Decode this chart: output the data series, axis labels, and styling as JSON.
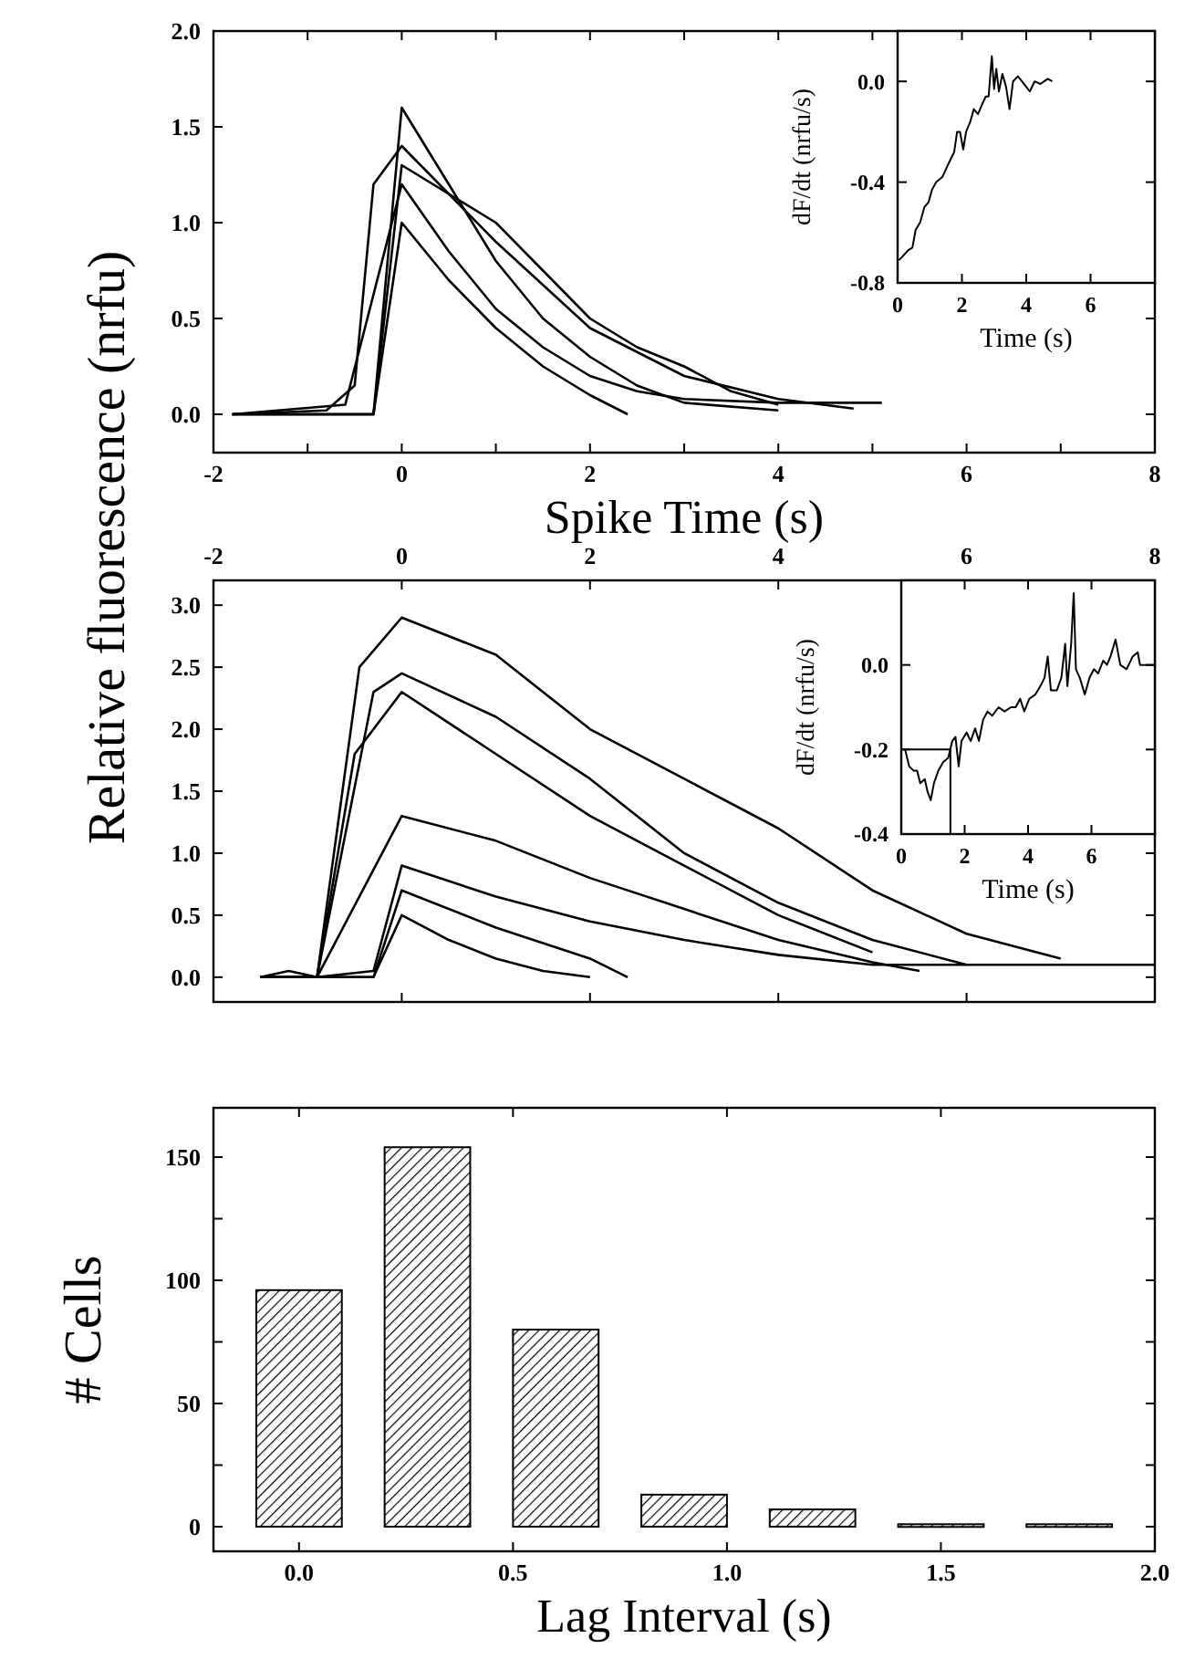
{
  "chart_data": [
    {
      "type": "line",
      "ylabel": "Relative fluorescence (nrfu)",
      "xlabel": "Spike Time (s)",
      "xlim": [
        -2,
        8
      ],
      "ylim": [
        -0.2,
        2.0
      ],
      "xticks": [
        -2,
        {
          "value": -1,
          "label": null
        },
        0,
        {
          "value": 1,
          "label": null
        },
        2,
        {
          "value": 3,
          "label": null
        },
        4,
        {
          "value": 5,
          "label": null
        },
        6,
        {
          "value": 7,
          "label": null
        },
        8
      ],
      "yticks": [
        {
          "value": 0,
          "label": "0.0"
        },
        {
          "value": 0.5,
          "label": "0.5"
        },
        {
          "value": 1,
          "label": "1.0"
        },
        {
          "value": 1.5,
          "label": "1.5"
        },
        {
          "value": 2,
          "label": "2.0"
        }
      ],
      "series": [
        {
          "color": "#000000",
          "x": [
            -1.8,
            -0.3,
            0,
            0.5,
            1,
            1.5,
            2,
            2.5,
            3,
            4
          ],
          "values": [
            0,
            0,
            1.6,
            1.2,
            0.8,
            0.5,
            0.3,
            0.15,
            0.06,
            0.02
          ]
        },
        {
          "color": "#000000",
          "x": [
            -1.8,
            -0.3,
            0,
            0.5,
            1,
            1.5,
            2,
            2.4
          ],
          "values": [
            0,
            0,
            1.0,
            0.7,
            0.45,
            0.25,
            0.1,
            0
          ]
        },
        {
          "color": "#000000",
          "x": [
            -1.8,
            -0.8,
            -0.5,
            -0.3,
            0,
            1,
            2,
            3,
            4,
            4.8
          ],
          "values": [
            0,
            0.02,
            0.15,
            1.2,
            1.4,
            0.9,
            0.45,
            0.2,
            0.08,
            0.03
          ]
        },
        {
          "color": "#000000",
          "x": [
            -1.8,
            -0.6,
            0,
            0.5,
            1,
            1.5,
            2,
            2.5,
            3,
            4,
            5.1
          ],
          "values": [
            0,
            0.05,
            1.2,
            0.85,
            0.55,
            0.35,
            0.2,
            0.12,
            0.08,
            0.06,
            0.06
          ]
        },
        {
          "color": "#000000",
          "x": [
            -1.8,
            -0.3,
            0,
            1,
            1.5,
            2,
            2.5,
            3,
            3.5,
            4
          ],
          "values": [
            0,
            0,
            1.3,
            1.0,
            0.75,
            0.5,
            0.35,
            0.25,
            0.12,
            0.05
          ]
        }
      ]
    },
    {
      "type": "line",
      "xlabel": "Time (s)",
      "ylabel": "dF/dt (nrfu/s)",
      "xlim": [
        0,
        8
      ],
      "ylim": [
        -0.8,
        0.2
      ],
      "xticks": [
        0,
        2,
        4,
        6
      ],
      "yticks": [
        {
          "value": -0.8,
          "label": "-0.8"
        },
        {
          "value": -0.4,
          "label": "-0.4"
        },
        {
          "value": 0,
          "label": "0.0"
        }
      ],
      "series": [
        {
          "color": "#000000",
          "x": [
            0.04,
            0.19,
            0.33,
            0.46,
            0.56,
            0.7,
            0.83,
            0.96,
            1.07,
            1.2,
            1.39,
            1.57,
            1.76,
            1.85,
            1.94,
            2.04,
            2.13,
            2.26,
            2.37,
            2.5,
            2.63,
            2.74,
            2.83,
            2.93,
            3.0,
            3.07,
            3.15,
            3.26,
            3.37,
            3.48,
            3.59,
            3.74,
            3.93,
            4.11,
            4.26,
            4.44,
            4.67,
            4.81
          ],
          "values": [
            -0.71,
            -0.69,
            -0.67,
            -0.66,
            -0.59,
            -0.56,
            -0.5,
            -0.48,
            -0.43,
            -0.4,
            -0.38,
            -0.33,
            -0.28,
            -0.2,
            -0.2,
            -0.27,
            -0.2,
            -0.16,
            -0.11,
            -0.13,
            -0.09,
            -0.06,
            -0.06,
            0.1,
            -0.03,
            0.05,
            -0.04,
            0.03,
            -0.02,
            -0.11,
            0.0,
            0.02,
            -0.01,
            -0.04,
            0.0,
            -0.01,
            0.01,
            0.0
          ]
        }
      ]
    },
    {
      "type": "line",
      "xlim": [
        -2,
        8
      ],
      "ylim": [
        -0.2,
        3.2
      ],
      "xticks": [
        -2,
        0,
        2,
        4,
        6,
        8
      ],
      "yticks": [
        {
          "value": 0,
          "label": "0.0"
        },
        {
          "value": 0.5,
          "label": "0.5"
        },
        {
          "value": 1,
          "label": "1.0"
        },
        {
          "value": 1.5,
          "label": "1.5"
        },
        {
          "value": 2,
          "label": "2.0"
        },
        {
          "value": 2.5,
          "label": "2.5"
        },
        {
          "value": 3,
          "label": "3.0"
        }
      ],
      "series": [
        {
          "color": "#000000",
          "x": [
            -1.5,
            -1.2,
            -0.9,
            -0.45,
            0,
            1,
            2,
            3,
            4,
            5,
            6,
            7
          ],
          "values": [
            0,
            0.05,
            0,
            2.5,
            2.9,
            2.6,
            2.0,
            1.6,
            1.2,
            0.7,
            0.35,
            0.15
          ]
        },
        {
          "color": "#000000",
          "x": [
            -1.5,
            -0.9,
            -0.3,
            0,
            1,
            2,
            3,
            4,
            5,
            6
          ],
          "values": [
            0,
            0,
            2.3,
            2.45,
            2.1,
            1.6,
            1.0,
            0.6,
            0.3,
            0.1
          ]
        },
        {
          "color": "#000000",
          "x": [
            -1.5,
            -0.9,
            -0.5,
            0,
            1,
            2,
            3,
            4,
            5
          ],
          "values": [
            0,
            0,
            1.8,
            2.3,
            1.8,
            1.3,
            0.9,
            0.5,
            0.2
          ]
        },
        {
          "color": "#000000",
          "x": [
            -1.5,
            -0.9,
            0,
            1,
            2,
            3,
            4,
            5,
            5.5
          ],
          "values": [
            0,
            0,
            1.3,
            1.1,
            0.8,
            0.55,
            0.3,
            0.12,
            0.05
          ]
        },
        {
          "color": "#000000",
          "x": [
            -1.5,
            -0.9,
            -0.3,
            0,
            1,
            2,
            3,
            4,
            5,
            6,
            8
          ],
          "values": [
            0,
            0,
            0.05,
            0.9,
            0.65,
            0.45,
            0.3,
            0.18,
            0.1,
            0.1,
            0.1
          ]
        },
        {
          "color": "#000000",
          "x": [
            -1.5,
            -0.3,
            0,
            1,
            2,
            2.4
          ],
          "values": [
            0,
            0,
            0.7,
            0.4,
            0.15,
            0
          ]
        },
        {
          "color": "#000000",
          "x": [
            -1.5,
            -0.3,
            0,
            0.5,
            1,
            1.5,
            2
          ],
          "values": [
            0,
            0,
            0.5,
            0.3,
            0.15,
            0.05,
            0
          ]
        }
      ]
    },
    {
      "type": "line",
      "xlabel": "Time (s)",
      "ylabel": "dF/dt (nrfu/s)",
      "xlim": [
        0,
        8
      ],
      "ylim": [
        -0.4,
        0.2
      ],
      "xticks": [
        0,
        2,
        4,
        6
      ],
      "yticks": [
        {
          "value": -0.4,
          "label": "-0.4"
        },
        {
          "value": -0.2,
          "label": "-0.2"
        },
        {
          "value": 0,
          "label": "0.0"
        }
      ],
      "series": [
        {
          "color": "#000000",
          "x": [
            0.12,
            0.25,
            0.39,
            0.5,
            0.6,
            0.74,
            0.83,
            0.93,
            1.03,
            1.17,
            1.32,
            1.48,
            1.61,
            1.71,
            1.81,
            1.9,
            2.06,
            2.19,
            2.33,
            2.45,
            2.58,
            2.72,
            2.87,
            3.07,
            3.26,
            3.46,
            3.61,
            3.75,
            3.88,
            4.04,
            4.23,
            4.39,
            4.52,
            4.62,
            4.72,
            4.91,
            5.05,
            5.17,
            5.24,
            5.36,
            5.44,
            5.51,
            5.63,
            5.79,
            5.94,
            6.08,
            6.21,
            6.37,
            6.49,
            6.6,
            6.76,
            6.91,
            7.11,
            7.3,
            7.46,
            7.53,
            8.0
          ],
          "values": [
            -0.2,
            -0.24,
            -0.25,
            -0.25,
            -0.28,
            -0.27,
            -0.3,
            -0.32,
            -0.28,
            -0.25,
            -0.23,
            -0.22,
            -0.18,
            -0.17,
            -0.24,
            -0.18,
            -0.16,
            -0.18,
            -0.15,
            -0.18,
            -0.13,
            -0.11,
            -0.12,
            -0.1,
            -0.11,
            -0.1,
            -0.1,
            -0.08,
            -0.11,
            -0.08,
            -0.07,
            -0.05,
            -0.03,
            0.02,
            -0.06,
            -0.06,
            -0.03,
            0.05,
            -0.05,
            0.05,
            0.17,
            -0.01,
            -0.03,
            -0.07,
            -0.03,
            -0.01,
            -0.02,
            0.01,
            0.0,
            0.02,
            0.06,
            0.0,
            -0.01,
            0.02,
            0.03,
            0.0,
            0.0
          ]
        },
        {
          "color": "#000000",
          "x": [
            0,
            1.55,
            1.55
          ],
          "values": [
            -0.2,
            -0.2,
            -0.4
          ]
        }
      ]
    },
    {
      "type": "bar",
      "xlabel": "Lag Interval (s)",
      "ylabel": "# Cells",
      "xlim": [
        -0.2,
        2.0
      ],
      "ylim": [
        -10,
        170
      ],
      "color": "#000000",
      "x": [
        0,
        0.3,
        0.6,
        0.9,
        1.2,
        1.5,
        1.8
      ],
      "values": [
        96,
        154,
        80,
        13,
        7,
        1,
        1
      ],
      "xticks": [
        {
          "value": 0,
          "label": "0.0"
        },
        {
          "value": 0.5,
          "label": "0.5"
        },
        {
          "value": 1,
          "label": "1.0"
        },
        {
          "value": 1.5,
          "label": "1.5"
        },
        {
          "value": 2,
          "label": "2.0"
        }
      ],
      "yticks": [
        0,
        {
          "value": 25,
          "label": null
        },
        50,
        {
          "value": 75,
          "label": null
        },
        100,
        {
          "value": 125,
          "label": null
        },
        150
      ]
    }
  ]
}
